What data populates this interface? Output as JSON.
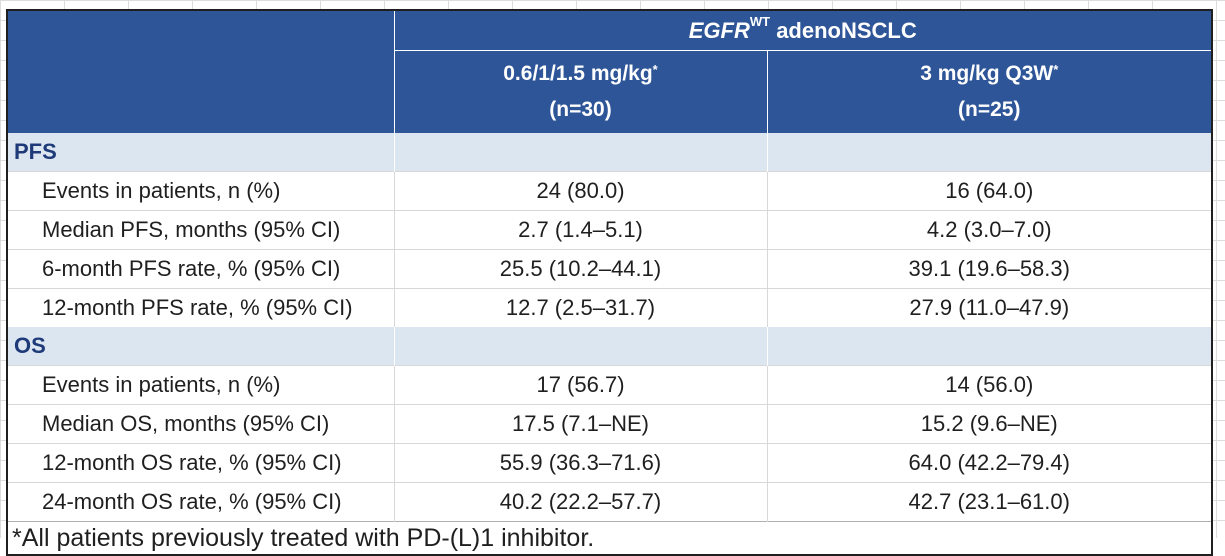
{
  "header": {
    "group_prefix": "EGFR",
    "group_sup": "WT",
    "group_suffix": " adenoNSCLC",
    "col1_dose": "0.6/1/1.5 mg/kg",
    "col1_sup": "*",
    "col1_n": "(n=30)",
    "col2_dose": "3 mg/kg Q3W",
    "col2_sup": "*",
    "col2_n": "(n=25)"
  },
  "sections": [
    {
      "title": "PFS",
      "rows": [
        {
          "label": "Events in patients, n (%)",
          "v1": "24 (80.0)",
          "v2": "16 (64.0)"
        },
        {
          "label": "Median PFS, months (95% CI)",
          "v1": "2.7 (1.4–5.1)",
          "v2": "4.2 (3.0–7.0)"
        },
        {
          "label": "6-month PFS rate, % (95% CI)",
          "v1": "25.5 (10.2–44.1)",
          "v2": "39.1 (19.6–58.3)"
        },
        {
          "label": "12-month PFS rate, % (95% CI)",
          "v1": "12.7 (2.5–31.7)",
          "v2": "27.9 (11.0–47.9)"
        }
      ]
    },
    {
      "title": "OS",
      "rows": [
        {
          "label": "Events in patients, n (%)",
          "v1": "17 (56.7)",
          "v2": "14 (56.0)"
        },
        {
          "label": "Median OS, months (95% CI)",
          "v1": "17.5 (7.1–NE)",
          "v2": "15.2 (9.6–NE)"
        },
        {
          "label": "12-month OS rate, % (95% CI)",
          "v1": "55.9 (36.3–71.6)",
          "v2": "64.0 (42.2–79.4)"
        },
        {
          "label": "24-month OS rate, % (95% CI)",
          "v1": "40.2 (22.2–57.7)",
          "v2": "42.7 (23.1–61.0)"
        }
      ]
    }
  ],
  "footnote": "*All patients previously treated with PD-(L)1 inhibitor."
}
